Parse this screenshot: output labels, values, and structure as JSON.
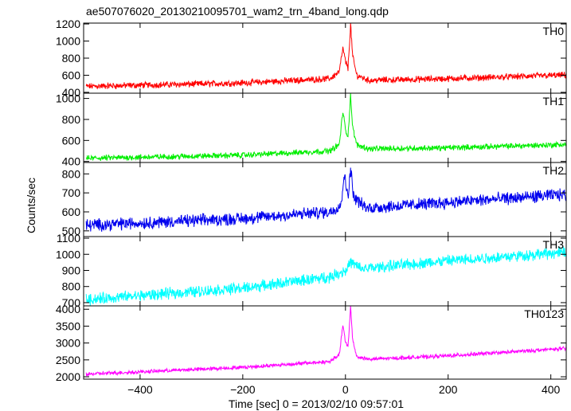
{
  "chart_data": {
    "type": "line",
    "title": "ae507076020_20130210095701_wam2_trn_4band_long.qdp",
    "xlabel": "Time [sec] 0 = 2013/02/10 09:57:01",
    "ylabel": "Counts/sec",
    "xlim": [
      -510,
      430
    ],
    "x_ticks": [
      -400,
      -200,
      0,
      200,
      400
    ],
    "x_tick_labels": [
      "−400",
      "−200",
      "0",
      "200",
      "400"
    ],
    "grid": false,
    "panels": [
      {
        "name": "TH0",
        "color": "#ff0000",
        "ylim": [
          390,
          1210
        ],
        "y_ticks": [
          400,
          600,
          800,
          1000,
          1200
        ],
        "y_tick_labels": [
          "400",
          "600",
          "800",
          "1000",
          "1200"
        ],
        "profile": [
          [
            -500,
            470
          ],
          [
            -200,
            510
          ],
          [
            -30,
            560
          ],
          [
            -12,
            640
          ],
          [
            -5,
            920
          ],
          [
            0,
            760
          ],
          [
            5,
            680
          ],
          [
            10,
            1200
          ],
          [
            14,
            820
          ],
          [
            22,
            600
          ],
          [
            45,
            540
          ],
          [
            200,
            560
          ],
          [
            420,
            600
          ]
        ],
        "noise": 30
      },
      {
        "name": "TH1",
        "color": "#00ee00",
        "ylim": [
          390,
          1050
        ],
        "y_ticks": [
          400,
          600,
          800,
          1000
        ],
        "y_tick_labels": [
          "400",
          "600",
          "800",
          "1000"
        ],
        "profile": [
          [
            -500,
            430
          ],
          [
            -200,
            460
          ],
          [
            -30,
            500
          ],
          [
            -12,
            560
          ],
          [
            -5,
            880
          ],
          [
            0,
            700
          ],
          [
            5,
            640
          ],
          [
            10,
            1040
          ],
          [
            14,
            720
          ],
          [
            22,
            560
          ],
          [
            45,
            520
          ],
          [
            200,
            530
          ],
          [
            420,
            560
          ]
        ],
        "noise": 22
      },
      {
        "name": "TH2",
        "color": "#0000ee",
        "ylim": [
          470,
          860
        ],
        "y_ticks": [
          500,
          600,
          700,
          800
        ],
        "y_tick_labels": [
          "500",
          "600",
          "700",
          "800"
        ],
        "profile": [
          [
            -500,
            530
          ],
          [
            -200,
            565
          ],
          [
            -30,
            600
          ],
          [
            -8,
            640
          ],
          [
            -3,
            800
          ],
          [
            2,
            720
          ],
          [
            6,
            700
          ],
          [
            10,
            830
          ],
          [
            16,
            680
          ],
          [
            40,
            620
          ],
          [
            200,
            650
          ],
          [
            420,
            690
          ]
        ],
        "noise": 26
      },
      {
        "name": "TH3",
        "color": "#00ffff",
        "ylim": [
          680,
          1110
        ],
        "y_ticks": [
          700,
          800,
          900,
          1000,
          1100
        ],
        "y_tick_labels": [
          "700",
          "800",
          "900",
          "1000",
          "1100"
        ],
        "profile": [
          [
            -500,
            720
          ],
          [
            -200,
            790
          ],
          [
            -30,
            860
          ],
          [
            0,
            900
          ],
          [
            10,
            950
          ],
          [
            30,
            910
          ],
          [
            200,
            960
          ],
          [
            420,
            1010
          ]
        ],
        "noise": 28
      },
      {
        "name": "TH0123",
        "color": "#ff00ff",
        "ylim": [
          1930,
          4100
        ],
        "y_ticks": [
          2000,
          2500,
          3000,
          3500,
          4000
        ],
        "y_tick_labels": [
          "2000",
          "2500",
          "3000",
          "3500",
          "4000"
        ],
        "profile": [
          [
            -500,
            2080
          ],
          [
            -200,
            2280
          ],
          [
            -30,
            2450
          ],
          [
            -12,
            2650
          ],
          [
            -5,
            3550
          ],
          [
            0,
            3000
          ],
          [
            5,
            2900
          ],
          [
            10,
            4080
          ],
          [
            14,
            3100
          ],
          [
            22,
            2600
          ],
          [
            45,
            2520
          ],
          [
            200,
            2620
          ],
          [
            420,
            2830
          ]
        ],
        "noise": 45
      }
    ]
  }
}
